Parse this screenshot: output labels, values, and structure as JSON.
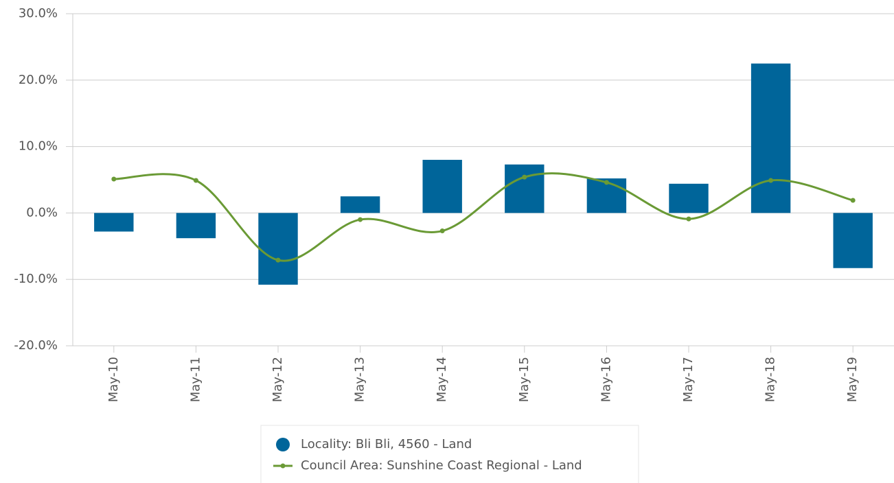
{
  "chart_data": {
    "type": "bar",
    "categories": [
      "May-10",
      "May-11",
      "May-12",
      "May-13",
      "May-14",
      "May-15",
      "May-16",
      "May-17",
      "May-18",
      "May-19"
    ],
    "series": [
      {
        "name": "Locality: Bli Bli, 4560 - Land",
        "type": "bar",
        "color": "#00659a",
        "values": [
          -2.8,
          -3.8,
          -10.8,
          2.5,
          8.0,
          7.3,
          5.2,
          4.4,
          22.5,
          -8.3
        ]
      },
      {
        "name": "Council Area: Sunshine Coast Regional - Land",
        "type": "line",
        "color": "#6a9a35",
        "values": [
          5.1,
          4.9,
          -7.1,
          -1.0,
          -2.7,
          5.4,
          4.6,
          -0.9,
          4.9,
          1.9
        ]
      }
    ],
    "ylim": [
      -20,
      30
    ],
    "yticks": [
      {
        "value": -20,
        "label": "-20.0%"
      },
      {
        "value": -10,
        "label": "-10.0%"
      },
      {
        "value": 0,
        "label": "0.0%"
      },
      {
        "value": 10,
        "label": "10.0%"
      },
      {
        "value": 20,
        "label": "20.0%"
      },
      {
        "value": 30,
        "label": "30.0%"
      }
    ],
    "grid": true,
    "legend": "bottom"
  }
}
